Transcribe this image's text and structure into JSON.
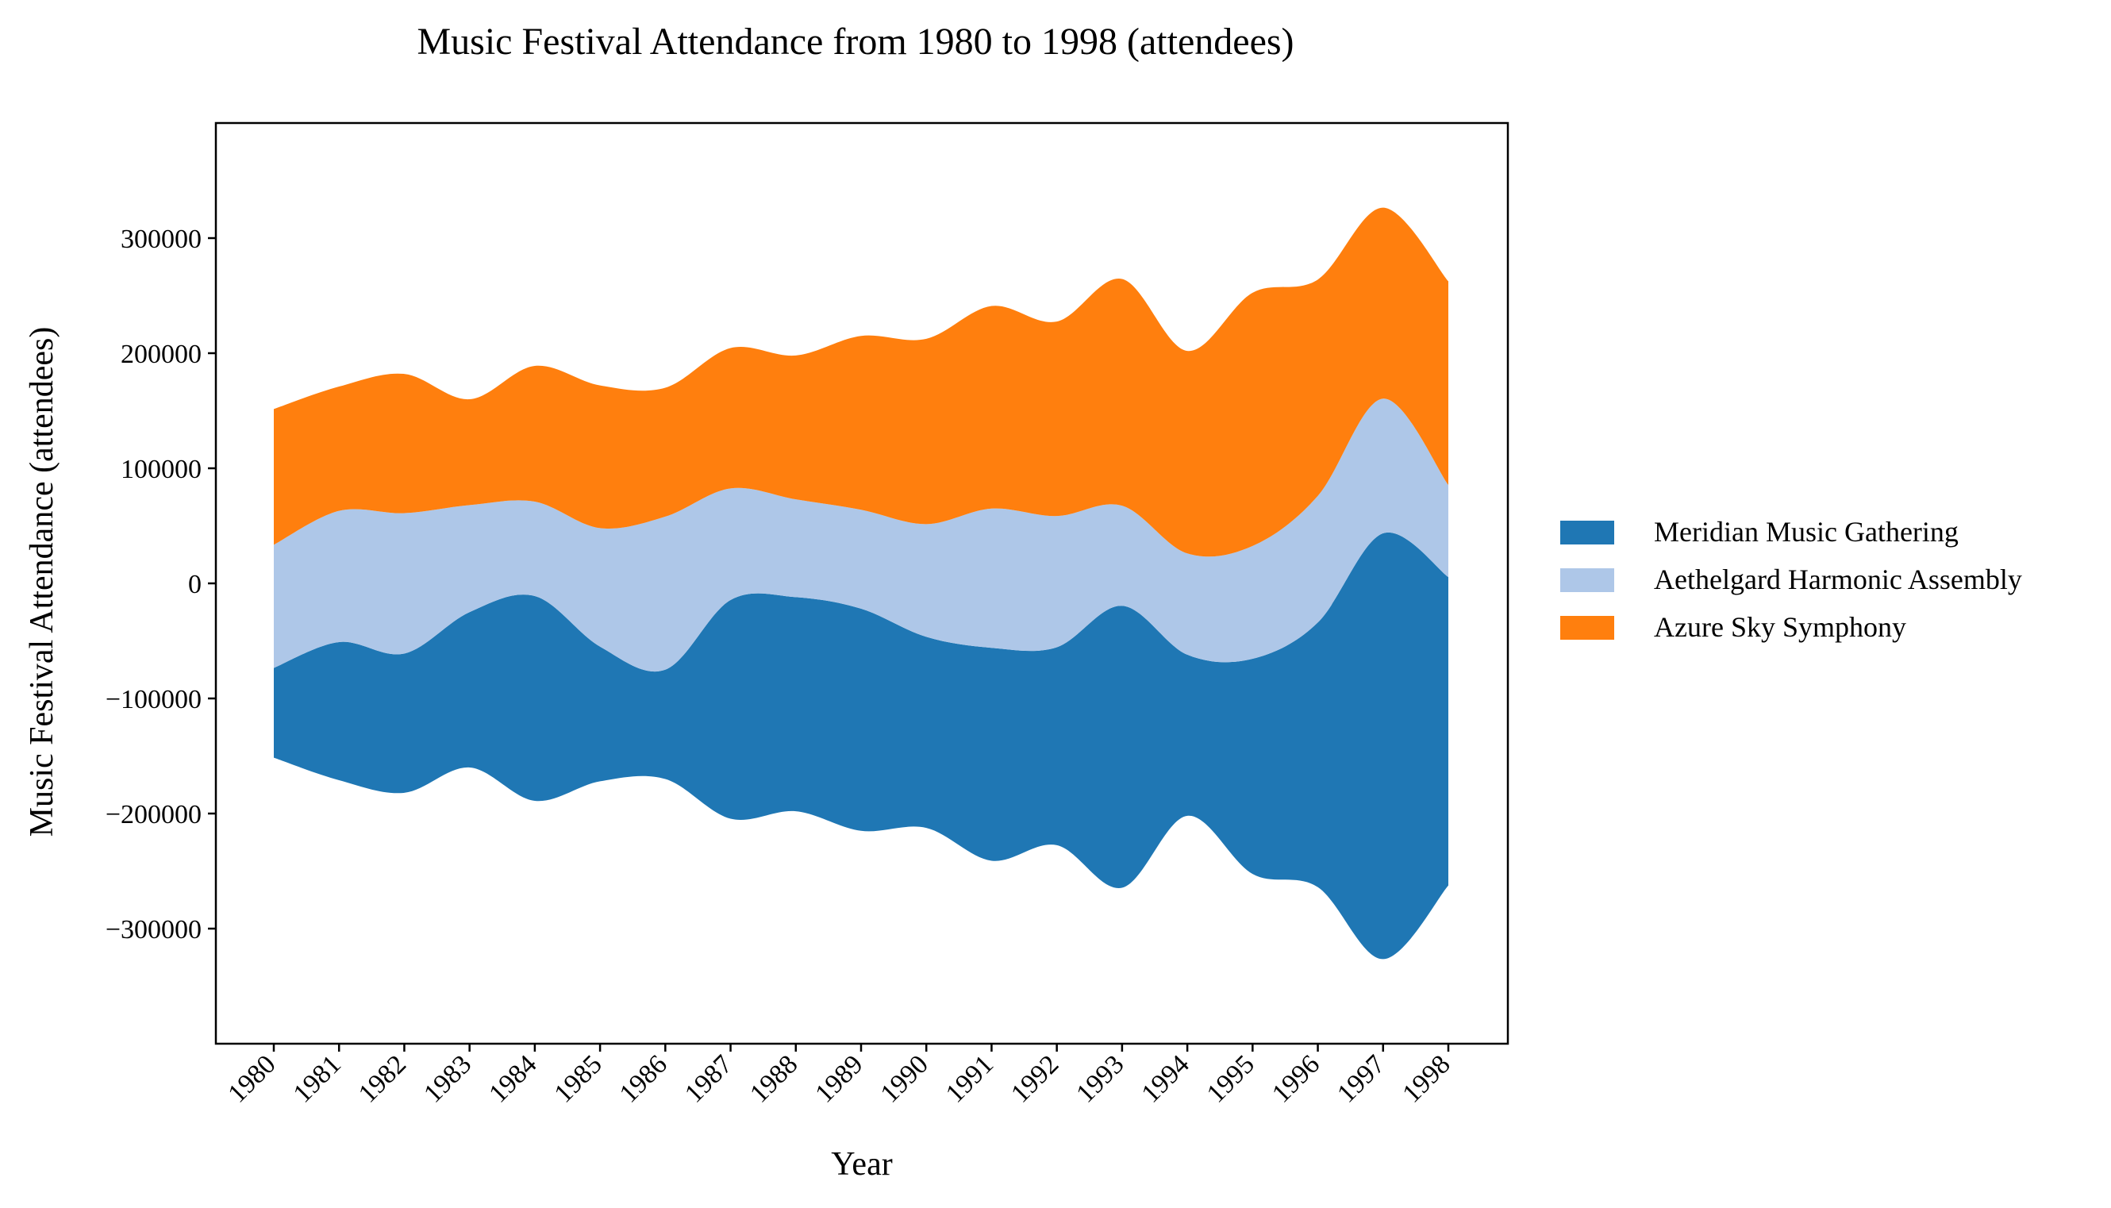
{
  "chart_data": {
    "type": "streamgraph",
    "title": "Music Festival Attendance from 1980 to 1998 (attendees)",
    "xlabel": "Year",
    "ylabel": "Music Festival Attendance (attendees)",
    "x": [
      "1980",
      "1981",
      "1982",
      "1983",
      "1984",
      "1985",
      "1986",
      "1987",
      "1988",
      "1989",
      "1990",
      "1991",
      "1992",
      "1993",
      "1994",
      "1995",
      "1996",
      "1997",
      "1998"
    ],
    "ylim": [
      -400000,
      400000
    ],
    "yticks": [
      -300000,
      -200000,
      -100000,
      0,
      100000,
      200000,
      300000
    ],
    "ytick_labels": [
      "−300000",
      "−200000",
      "−100000",
      "0",
      "100000",
      "200000",
      "300000"
    ],
    "grid": false,
    "legend_position": "right",
    "series": [
      {
        "name": "Meridian Music Gathering",
        "color": "#1f77b4",
        "values": [
          78000,
          120000,
          121000,
          135000,
          178000,
          117000,
          95000,
          190000,
          186000,
          193000,
          166000,
          185000,
          172000,
          245000,
          140000,
          187000,
          230000,
          370000,
          268000
        ]
      },
      {
        "name": "Aethelgard Harmonic Assembly",
        "color": "#aec7e8",
        "values": [
          107000,
          114000,
          122000,
          93000,
          82000,
          103000,
          133000,
          97000,
          85000,
          86000,
          98000,
          121000,
          114000,
          87000,
          88000,
          98000,
          110000,
          117000,
          80000
        ]
      },
      {
        "name": "Azure Sky Symphony",
        "color": "#ff7f0e",
        "values": [
          118000,
          108000,
          121000,
          92000,
          118000,
          124000,
          112000,
          122000,
          125000,
          151000,
          161000,
          176000,
          169000,
          197000,
          176000,
          220000,
          188000,
          166000,
          177000
        ]
      }
    ]
  }
}
